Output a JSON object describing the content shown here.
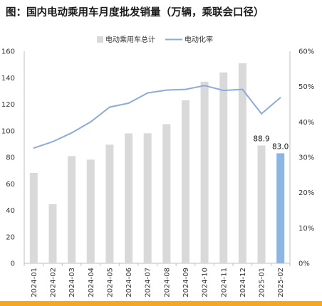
{
  "title": "图：国内电动乘用车月度批发销量（万辆，乘联会口径）",
  "colors": {
    "bar": "#d9d9d9",
    "bar_highlight": "#8db4e2",
    "line": "#8eaadb",
    "axis": "#bfbfbf",
    "footer": "#f5a623"
  },
  "chart_data": {
    "type": "bar",
    "categories": [
      "2024-01",
      "2024-02",
      "2024-03",
      "2024-04",
      "2024-05",
      "2024-06",
      "2024-07",
      "2024-08",
      "2024-09",
      "2024-10",
      "2024-11",
      "2024-12",
      "2025-01",
      "2025-02"
    ],
    "series": [
      {
        "name": "电动乘用车总计",
        "type": "bar",
        "axis": "left",
        "values": [
          68.2,
          44.6,
          80.9,
          78.2,
          89.5,
          98.0,
          98.1,
          105.0,
          123.0,
          137.0,
          144.0,
          151.0,
          88.9,
          83.0
        ]
      },
      {
        "name": "电动化率",
        "type": "line",
        "axis": "right",
        "values": [
          32.6,
          34.4,
          36.9,
          40.0,
          44.2,
          45.3,
          48.2,
          49.0,
          49.2,
          50.3,
          48.9,
          49.2,
          42.3,
          46.9
        ],
        "unit": "%"
      }
    ],
    "data_labels": [
      {
        "category": "2025-01",
        "text": "88.9"
      },
      {
        "category": "2025-02",
        "text": "83.0"
      }
    ],
    "highlight_category": "2025-02",
    "ylim": [
      0,
      160
    ],
    "yticks": [
      "0",
      "20",
      "40",
      "60",
      "80",
      "100",
      "120",
      "140",
      "160"
    ],
    "y2lim": [
      0,
      60
    ],
    "y2ticks": [
      "0%",
      "10%",
      "20%",
      "30%",
      "40%",
      "50%",
      "60%"
    ],
    "legend_position": "top-center",
    "grid": false
  }
}
